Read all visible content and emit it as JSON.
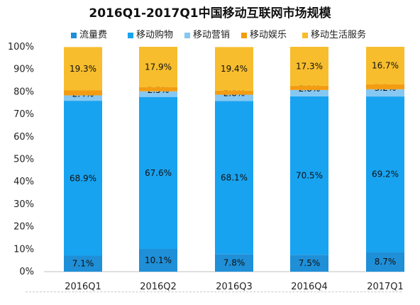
{
  "chart_data": {
    "type": "bar",
    "stacked": true,
    "title": "2016Q1-2017Q1中国移动互联网市场规模",
    "categories": [
      "2016Q1",
      "2016Q2",
      "2016Q3",
      "2016Q4",
      "2017Q1"
    ],
    "y_ticks": [
      "0%",
      "10%",
      "20%",
      "30%",
      "40%",
      "50%",
      "60%",
      "70%",
      "80%",
      "90%",
      "100%"
    ],
    "ylim": [
      0,
      100
    ],
    "legend_position": "top",
    "grid": false,
    "series": [
      {
        "name": "流量费",
        "color": "#1f8fd8",
        "values": [
          7.1,
          10.1,
          7.8,
          7.5,
          8.7
        ],
        "labels": [
          "7.1%",
          "10.1%",
          "7.8%",
          "7.5%",
          "8.7%"
        ]
      },
      {
        "name": "移动购物",
        "color": "#18a3f0",
        "values": [
          68.9,
          67.6,
          68.1,
          70.5,
          69.2
        ],
        "labels": [
          "68.9%",
          "67.6%",
          "68.1%",
          "70.5%",
          "69.2%"
        ]
      },
      {
        "name": "移动营销",
        "color": "#86c8f2",
        "values": [
          2.4,
          2.5,
          2.8,
          2.8,
          3.2
        ],
        "labels": [
          "2.4%",
          "2.5%",
          "2.8%",
          "2.8%",
          "3.2%"
        ]
      },
      {
        "name": "移动娱乐",
        "color": "#f39c12",
        "values": [
          2.2,
          1.9,
          1.8,
          1.9,
          2.2
        ],
        "labels": [
          "2.2%",
          "1.9%",
          "1.8%",
          "1.9%",
          "2.2%"
        ]
      },
      {
        "name": "移动生活服务",
        "color": "#f7bd2d",
        "values": [
          19.3,
          17.9,
          19.4,
          17.3,
          16.7
        ],
        "labels": [
          "19.3%",
          "17.9%",
          "19.4%",
          "17.3%",
          "16.7%"
        ]
      }
    ]
  }
}
